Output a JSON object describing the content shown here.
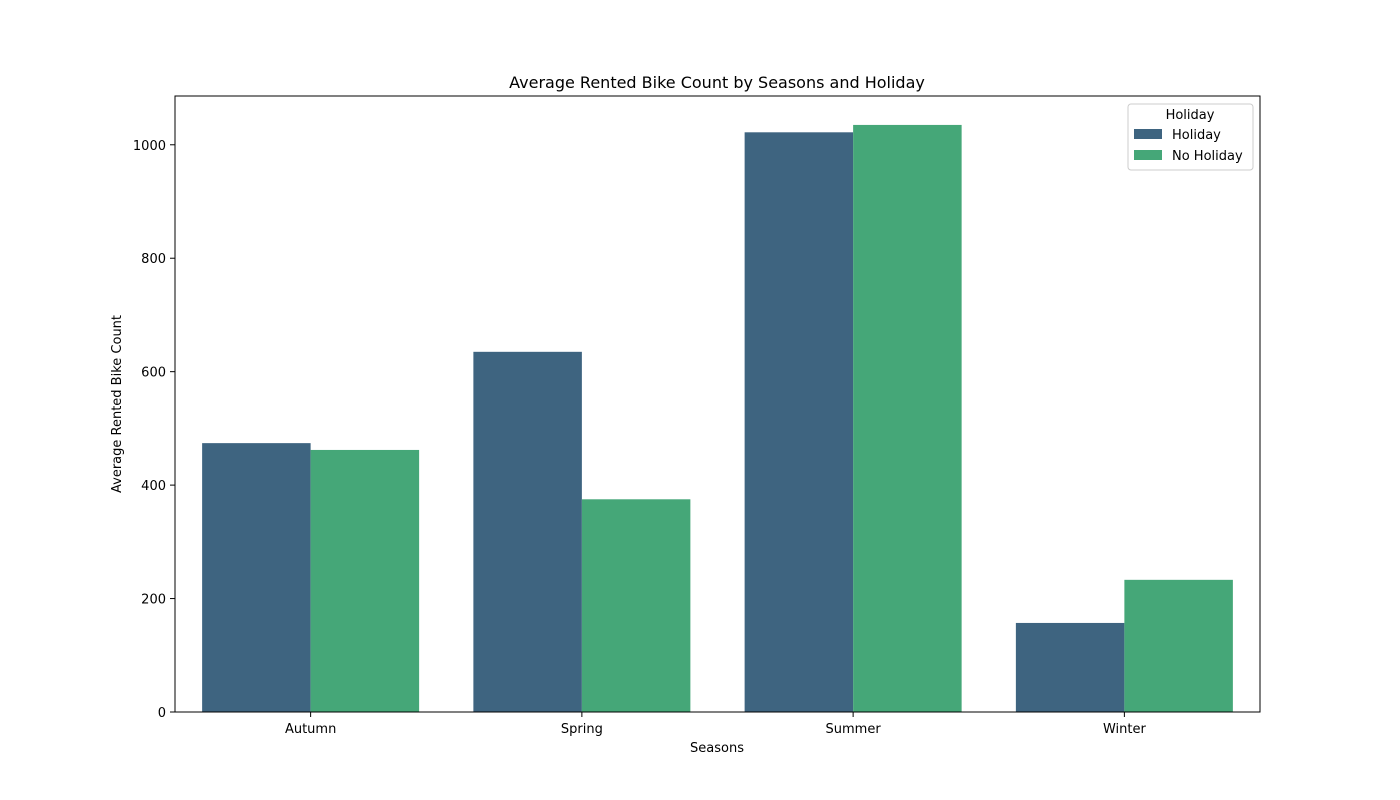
{
  "chart_data": {
    "type": "bar",
    "title": "Average Rented Bike Count by Seasons and Holiday",
    "xlabel": "Seasons",
    "ylabel": "Average Rented Bike Count",
    "categories": [
      "Autumn",
      "Spring",
      "Summer",
      "Winter"
    ],
    "series": [
      {
        "name": "Holiday",
        "color": "#3e6480",
        "values": [
          474,
          635,
          1022,
          157
        ]
      },
      {
        "name": "No Holiday",
        "color": "#45a778",
        "values": [
          462,
          375,
          1035,
          233
        ]
      }
    ],
    "ylim": [
      0,
      1086
    ],
    "yticks": [
      0,
      200,
      400,
      600,
      800,
      1000
    ],
    "grid": false,
    "legend": {
      "title": "Holiday",
      "placement": "top-right"
    }
  }
}
